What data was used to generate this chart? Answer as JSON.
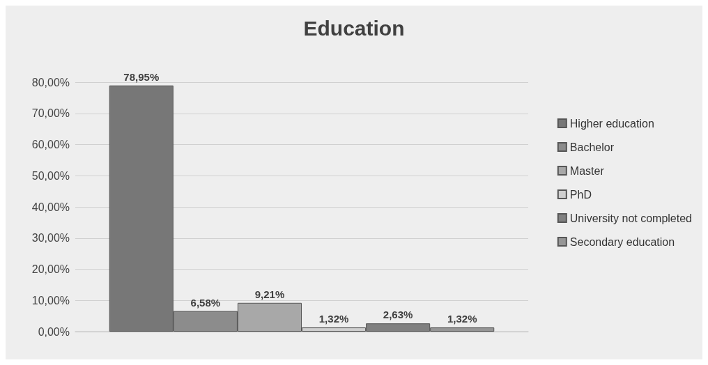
{
  "chart_data": {
    "type": "bar",
    "title": "Education",
    "categories": [
      null
    ],
    "series": [
      {
        "name": "Higher education",
        "color": "#777777",
        "values": [
          78.95
        ],
        "value_labels": [
          "78,95%"
        ]
      },
      {
        "name": "Bachelor",
        "color": "#8c8c8c",
        "values": [
          6.58
        ],
        "value_labels": [
          "6,58%"
        ]
      },
      {
        "name": "Master",
        "color": "#a8a8a8",
        "values": [
          9.21
        ],
        "value_labels": [
          "9,21%"
        ]
      },
      {
        "name": "PhD",
        "color": "#cfcfcf",
        "values": [
          1.32
        ],
        "value_labels": [
          "1,32%"
        ]
      },
      {
        "name": "University not completed",
        "color": "#808080",
        "values": [
          2.63
        ],
        "value_labels": [
          "2,63%"
        ]
      },
      {
        "name": "Secondary education",
        "color": "#969696",
        "values": [
          1.32
        ],
        "value_labels": [
          "1,32%"
        ]
      }
    ],
    "ylim": [
      0,
      80
    ],
    "yticks": [
      {
        "value": 0,
        "label": "0,00%"
      },
      {
        "value": 10,
        "label": "10,00%"
      },
      {
        "value": 20,
        "label": "20,00%"
      },
      {
        "value": 30,
        "label": "30,00%"
      },
      {
        "value": 40,
        "label": "40,00%"
      },
      {
        "value": 50,
        "label": "50,00%"
      },
      {
        "value": 60,
        "label": "60,00%"
      },
      {
        "value": 70,
        "label": "70,00%"
      },
      {
        "value": 80,
        "label": "80,00%"
      }
    ],
    "grid": "y",
    "legend": "right",
    "tick_labels": "y"
  }
}
